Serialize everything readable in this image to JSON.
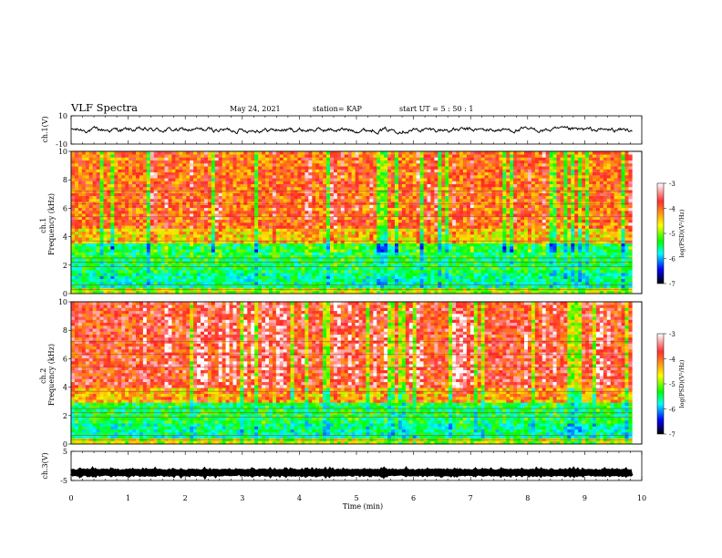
{
  "header": {
    "title": "VLF Spectra",
    "date": "May 24, 2021",
    "station": "station= KAP",
    "start": "start  UT =   5  : 50 : 1"
  },
  "colorbar": {
    "label": "log(PSD)(V²/Hz)",
    "ticks": [
      "-3",
      "-4",
      "-5",
      "-6",
      "-7"
    ],
    "colors": [
      "#ffffff",
      "#ff2020",
      "#ffff00",
      "#00ff00",
      "#00ffff",
      "#0000ff",
      "#000000"
    ]
  },
  "chart_data": [
    {
      "type": "line",
      "panel": "ch1-waveform",
      "ylabel": "ch.1(V)",
      "ylim": [
        -10,
        10
      ],
      "yticks": [
        "10",
        "-10"
      ],
      "xlim": [
        0,
        10
      ],
      "description_values": {
        "mean": 0,
        "envelope": [
          -4,
          4
        ]
      }
    },
    {
      "type": "heatmap",
      "panel": "ch1-spectrogram",
      "ylabel": "ch.1\nFrequency  (kHz)",
      "xlim": [
        0,
        9.83
      ],
      "ylim": [
        0,
        10
      ],
      "yticks": [
        "0",
        "2",
        "4",
        "6",
        "8",
        "10"
      ],
      "bands": [
        {
          "fmin": 0.0,
          "fmax": 0.5,
          "logpsd": -4.5
        },
        {
          "fmin": 0.5,
          "fmax": 1.5,
          "logpsd": -5.2
        },
        {
          "fmin": 1.5,
          "fmax": 3.5,
          "logpsd": -5.0
        },
        {
          "fmin": 3.5,
          "fmax": 4.5,
          "logpsd": -4.2
        },
        {
          "fmin": 4.5,
          "fmax": 10.0,
          "logpsd": -3.8
        }
      ]
    },
    {
      "type": "heatmap",
      "panel": "ch2-spectrogram",
      "ylabel": "ch.2\nFrequency  (kHz)",
      "xlim": [
        0,
        9.83
      ],
      "ylim": [
        0,
        10
      ],
      "yticks": [
        "0",
        "2",
        "4",
        "6",
        "8",
        "10"
      ],
      "bands": [
        {
          "fmin": 0.0,
          "fmax": 0.5,
          "logpsd": -4.5
        },
        {
          "fmin": 0.5,
          "fmax": 1.5,
          "logpsd": -5.2
        },
        {
          "fmin": 1.5,
          "fmax": 3.0,
          "logpsd": -5.0
        },
        {
          "fmin": 3.0,
          "fmax": 4.0,
          "logpsd": -4.1
        },
        {
          "fmin": 4.0,
          "fmax": 10.0,
          "logpsd": -3.6
        }
      ]
    },
    {
      "type": "line",
      "panel": "ch3-waveform",
      "ylabel": "ch.3(V)",
      "ylim": [
        -5,
        5
      ],
      "yticks": [
        "5",
        "-5"
      ],
      "xlim": [
        0,
        10
      ],
      "description_values": {
        "mean": -2.3,
        "envelope": [
          -2.8,
          -1.8
        ]
      }
    }
  ],
  "xaxis": {
    "label": "Time  (min)",
    "ticks": [
      "0",
      "1",
      "2",
      "3",
      "4",
      "5",
      "6",
      "7",
      "8",
      "9",
      "10"
    ]
  }
}
